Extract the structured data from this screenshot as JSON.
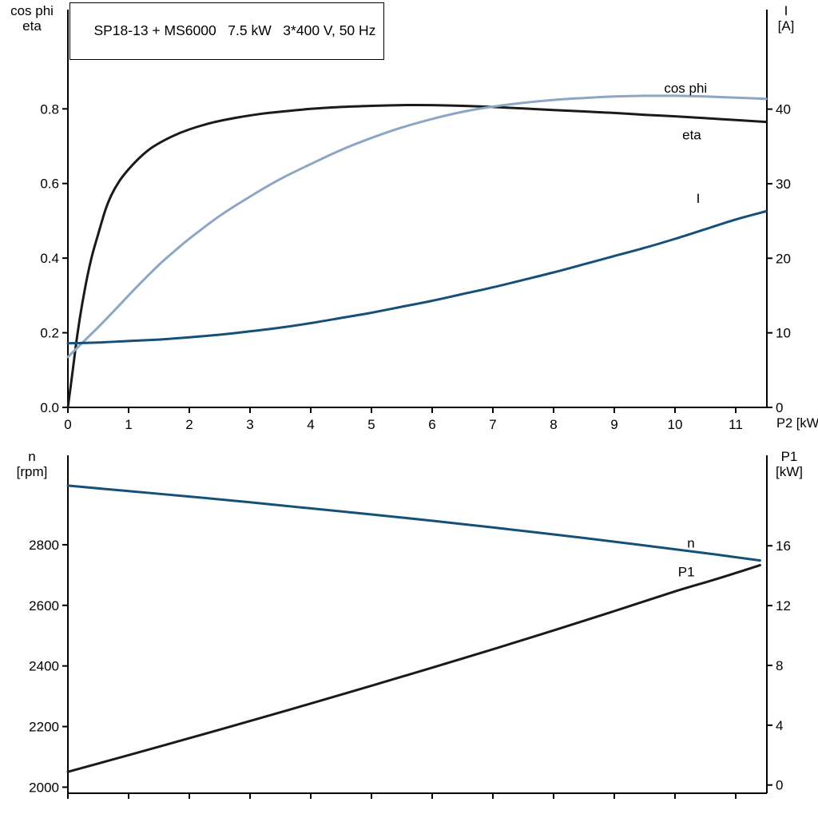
{
  "page": {
    "background": "#ffffff"
  },
  "header": {
    "title": "SP18-13 + MS6000   7.5 kW   3*400 V, 50 Hz"
  },
  "colors": {
    "black_curve": "#1a1a1a",
    "light_blue_curve": "#8da6c5",
    "dark_blue_curve": "#155079",
    "axis": "#000000",
    "text": "#000000"
  },
  "axis_corner_labels": {
    "top_left": [
      "cos phi",
      "eta"
    ],
    "top_right": [
      "I",
      "[A]"
    ],
    "x_axis": "P2 [kW]",
    "bottom_left": [
      "n",
      "[rpm]"
    ],
    "bottom_right": [
      "P1",
      "[kW]"
    ]
  },
  "chart_data": [
    {
      "id": "top",
      "type": "line",
      "title": "SP18-13 + MS6000   7.5 kW   3*400 V, 50 Hz",
      "xlabel": "P2 [kW]",
      "xlim": [
        0,
        11.513
      ],
      "x_tick_values": [
        0,
        1,
        2,
        3,
        4,
        5,
        6,
        7,
        8,
        9,
        10,
        11
      ],
      "x_tick_labels": [
        "0",
        "1",
        "2",
        "3",
        "4",
        "5",
        "6",
        "7",
        "8",
        "9",
        "10",
        "11"
      ],
      "left_axis": {
        "label": "cos phi / eta",
        "lim": [
          0,
          1.066
        ],
        "tick_values": [
          0,
          0.2,
          0.4,
          0.6,
          0.8
        ],
        "tick_labels": [
          "0.0",
          "0.2",
          "0.4",
          "0.6",
          "0.8"
        ]
      },
      "right_axis": {
        "label": "I [A]",
        "lim": [
          0,
          53.35
        ],
        "tick_values": [
          0,
          10,
          20,
          30,
          40
        ],
        "tick_labels": [
          "0",
          "10",
          "20",
          "30",
          "40"
        ]
      },
      "grid": false,
      "series": [
        {
          "name": "eta",
          "axis": "left",
          "color": "black_curve",
          "points": [
            [
              0,
              0
            ],
            [
              0.08,
              0.1
            ],
            [
              0.16,
              0.2
            ],
            [
              0.26,
              0.3
            ],
            [
              0.38,
              0.395
            ],
            [
              0.5,
              0.465
            ],
            [
              0.62,
              0.53
            ],
            [
              0.72,
              0.57
            ],
            [
              0.85,
              0.607
            ],
            [
              1.0,
              0.638
            ],
            [
              1.2,
              0.672
            ],
            [
              1.4,
              0.698
            ],
            [
              1.7,
              0.725
            ],
            [
              2.0,
              0.745
            ],
            [
              2.4,
              0.764
            ],
            [
              2.8,
              0.777
            ],
            [
              3.2,
              0.787
            ],
            [
              3.6,
              0.794
            ],
            [
              4.0,
              0.8
            ],
            [
              4.5,
              0.805
            ],
            [
              5.0,
              0.808
            ],
            [
              5.5,
              0.81
            ],
            [
              6.0,
              0.81
            ],
            [
              6.5,
              0.808
            ],
            [
              7.0,
              0.805
            ],
            [
              7.5,
              0.801
            ],
            [
              8.0,
              0.797
            ],
            [
              8.5,
              0.793
            ],
            [
              9.0,
              0.789
            ],
            [
              9.5,
              0.784
            ],
            [
              10.0,
              0.78
            ],
            [
              10.5,
              0.775
            ],
            [
              11.0,
              0.77
            ],
            [
              11.5,
              0.765
            ]
          ]
        },
        {
          "name": "cos phi",
          "axis": "left",
          "color": "light_blue_curve",
          "points": [
            [
              0,
              0.135
            ],
            [
              0.25,
              0.175
            ],
            [
              0.5,
              0.215
            ],
            [
              0.75,
              0.257
            ],
            [
              1.0,
              0.3
            ],
            [
              1.25,
              0.342
            ],
            [
              1.5,
              0.382
            ],
            [
              1.75,
              0.418
            ],
            [
              2.0,
              0.452
            ],
            [
              2.5,
              0.513
            ],
            [
              3.0,
              0.565
            ],
            [
              3.5,
              0.612
            ],
            [
              4.0,
              0.652
            ],
            [
              4.5,
              0.69
            ],
            [
              5.0,
              0.722
            ],
            [
              5.5,
              0.75
            ],
            [
              6.0,
              0.773
            ],
            [
              6.5,
              0.792
            ],
            [
              7.0,
              0.806
            ],
            [
              7.5,
              0.816
            ],
            [
              8.0,
              0.824
            ],
            [
              8.5,
              0.829
            ],
            [
              9.0,
              0.833
            ],
            [
              9.5,
              0.835
            ],
            [
              10.0,
              0.835
            ],
            [
              10.5,
              0.833
            ],
            [
              11.0,
              0.83
            ],
            [
              11.5,
              0.827
            ]
          ]
        },
        {
          "name": "I",
          "axis": "right",
          "color": "dark_blue_curve",
          "points": [
            [
              0,
              8.6
            ],
            [
              0.5,
              8.7
            ],
            [
              1,
              8.9
            ],
            [
              1.5,
              9.1
            ],
            [
              2,
              9.4
            ],
            [
              2.5,
              9.75
            ],
            [
              3,
              10.2
            ],
            [
              3.5,
              10.7
            ],
            [
              4,
              11.3
            ],
            [
              4.5,
              12.0
            ],
            [
              5,
              12.7
            ],
            [
              5.5,
              13.5
            ],
            [
              6,
              14.3
            ],
            [
              6.5,
              15.2
            ],
            [
              7,
              16.1
            ],
            [
              7.5,
              17.1
            ],
            [
              8,
              18.1
            ],
            [
              8.5,
              19.2
            ],
            [
              9,
              20.3
            ],
            [
              9.5,
              21.4
            ],
            [
              10,
              22.6
            ],
            [
              10.5,
              23.9
            ],
            [
              11,
              25.2
            ],
            [
              11.5,
              26.3
            ]
          ]
        }
      ],
      "annotations": [
        {
          "text": "cos phi",
          "x": 9.82,
          "y": 0.843,
          "axis": "left",
          "color": "light_blue_curve"
        },
        {
          "text": "eta",
          "x": 10.12,
          "y": 0.718,
          "axis": "left",
          "color": "black_curve"
        },
        {
          "text": "I",
          "x": 10.35,
          "y": 27.4,
          "axis": "right",
          "color": "dark_blue_curve"
        }
      ]
    },
    {
      "id": "bottom",
      "type": "line",
      "title": "",
      "xlabel": "",
      "xlim": [
        0,
        11.513
      ],
      "x_tick_values": [
        0,
        1,
        2,
        3,
        4,
        5,
        6,
        7,
        8,
        9,
        10,
        11
      ],
      "x_tick_labels": [],
      "left_axis": {
        "label": "n [rpm]",
        "lim": [
          1980,
          3095
        ],
        "tick_values": [
          2000,
          2200,
          2400,
          2600,
          2800
        ],
        "tick_labels": [
          "2000",
          "2200",
          "2400",
          "2600",
          "2800"
        ]
      },
      "right_axis": {
        "label": "P1 [kW]",
        "lim": [
          -0.55,
          22.05
        ],
        "tick_values": [
          0,
          4,
          8,
          12,
          16
        ],
        "tick_labels": [
          "0",
          "4",
          "8",
          "12",
          "16"
        ]
      },
      "grid": false,
      "series": [
        {
          "name": "n",
          "axis": "left",
          "color": "dark_blue_curve",
          "points": [
            [
              0,
              2995
            ],
            [
              1,
              2977
            ],
            [
              2,
              2959
            ],
            [
              3,
              2940
            ],
            [
              4,
              2920
            ],
            [
              5,
              2900
            ],
            [
              6,
              2879
            ],
            [
              7,
              2857
            ],
            [
              8,
              2834
            ],
            [
              9,
              2810
            ],
            [
              10,
              2785
            ],
            [
              10.7,
              2767
            ],
            [
              11.4,
              2748
            ]
          ]
        },
        {
          "name": "P1",
          "axis": "right",
          "color": "black_curve",
          "points": [
            [
              0,
              0.88
            ],
            [
              1,
              2.0
            ],
            [
              2,
              3.13
            ],
            [
              3,
              4.28
            ],
            [
              4,
              5.45
            ],
            [
              5,
              6.64
            ],
            [
              6,
              7.85
            ],
            [
              7,
              9.08
            ],
            [
              8,
              10.34
            ],
            [
              9,
              11.63
            ],
            [
              10,
              12.95
            ],
            [
              10.7,
              13.8
            ],
            [
              11.4,
              14.7
            ]
          ]
        }
      ],
      "annotations": [
        {
          "text": "n",
          "x": 10.2,
          "y": 2790,
          "axis": "left",
          "color": "dark_blue_curve"
        },
        {
          "text": "P1",
          "x": 10.05,
          "y": 13.95,
          "axis": "right",
          "color": "black_curve"
        }
      ]
    }
  ]
}
